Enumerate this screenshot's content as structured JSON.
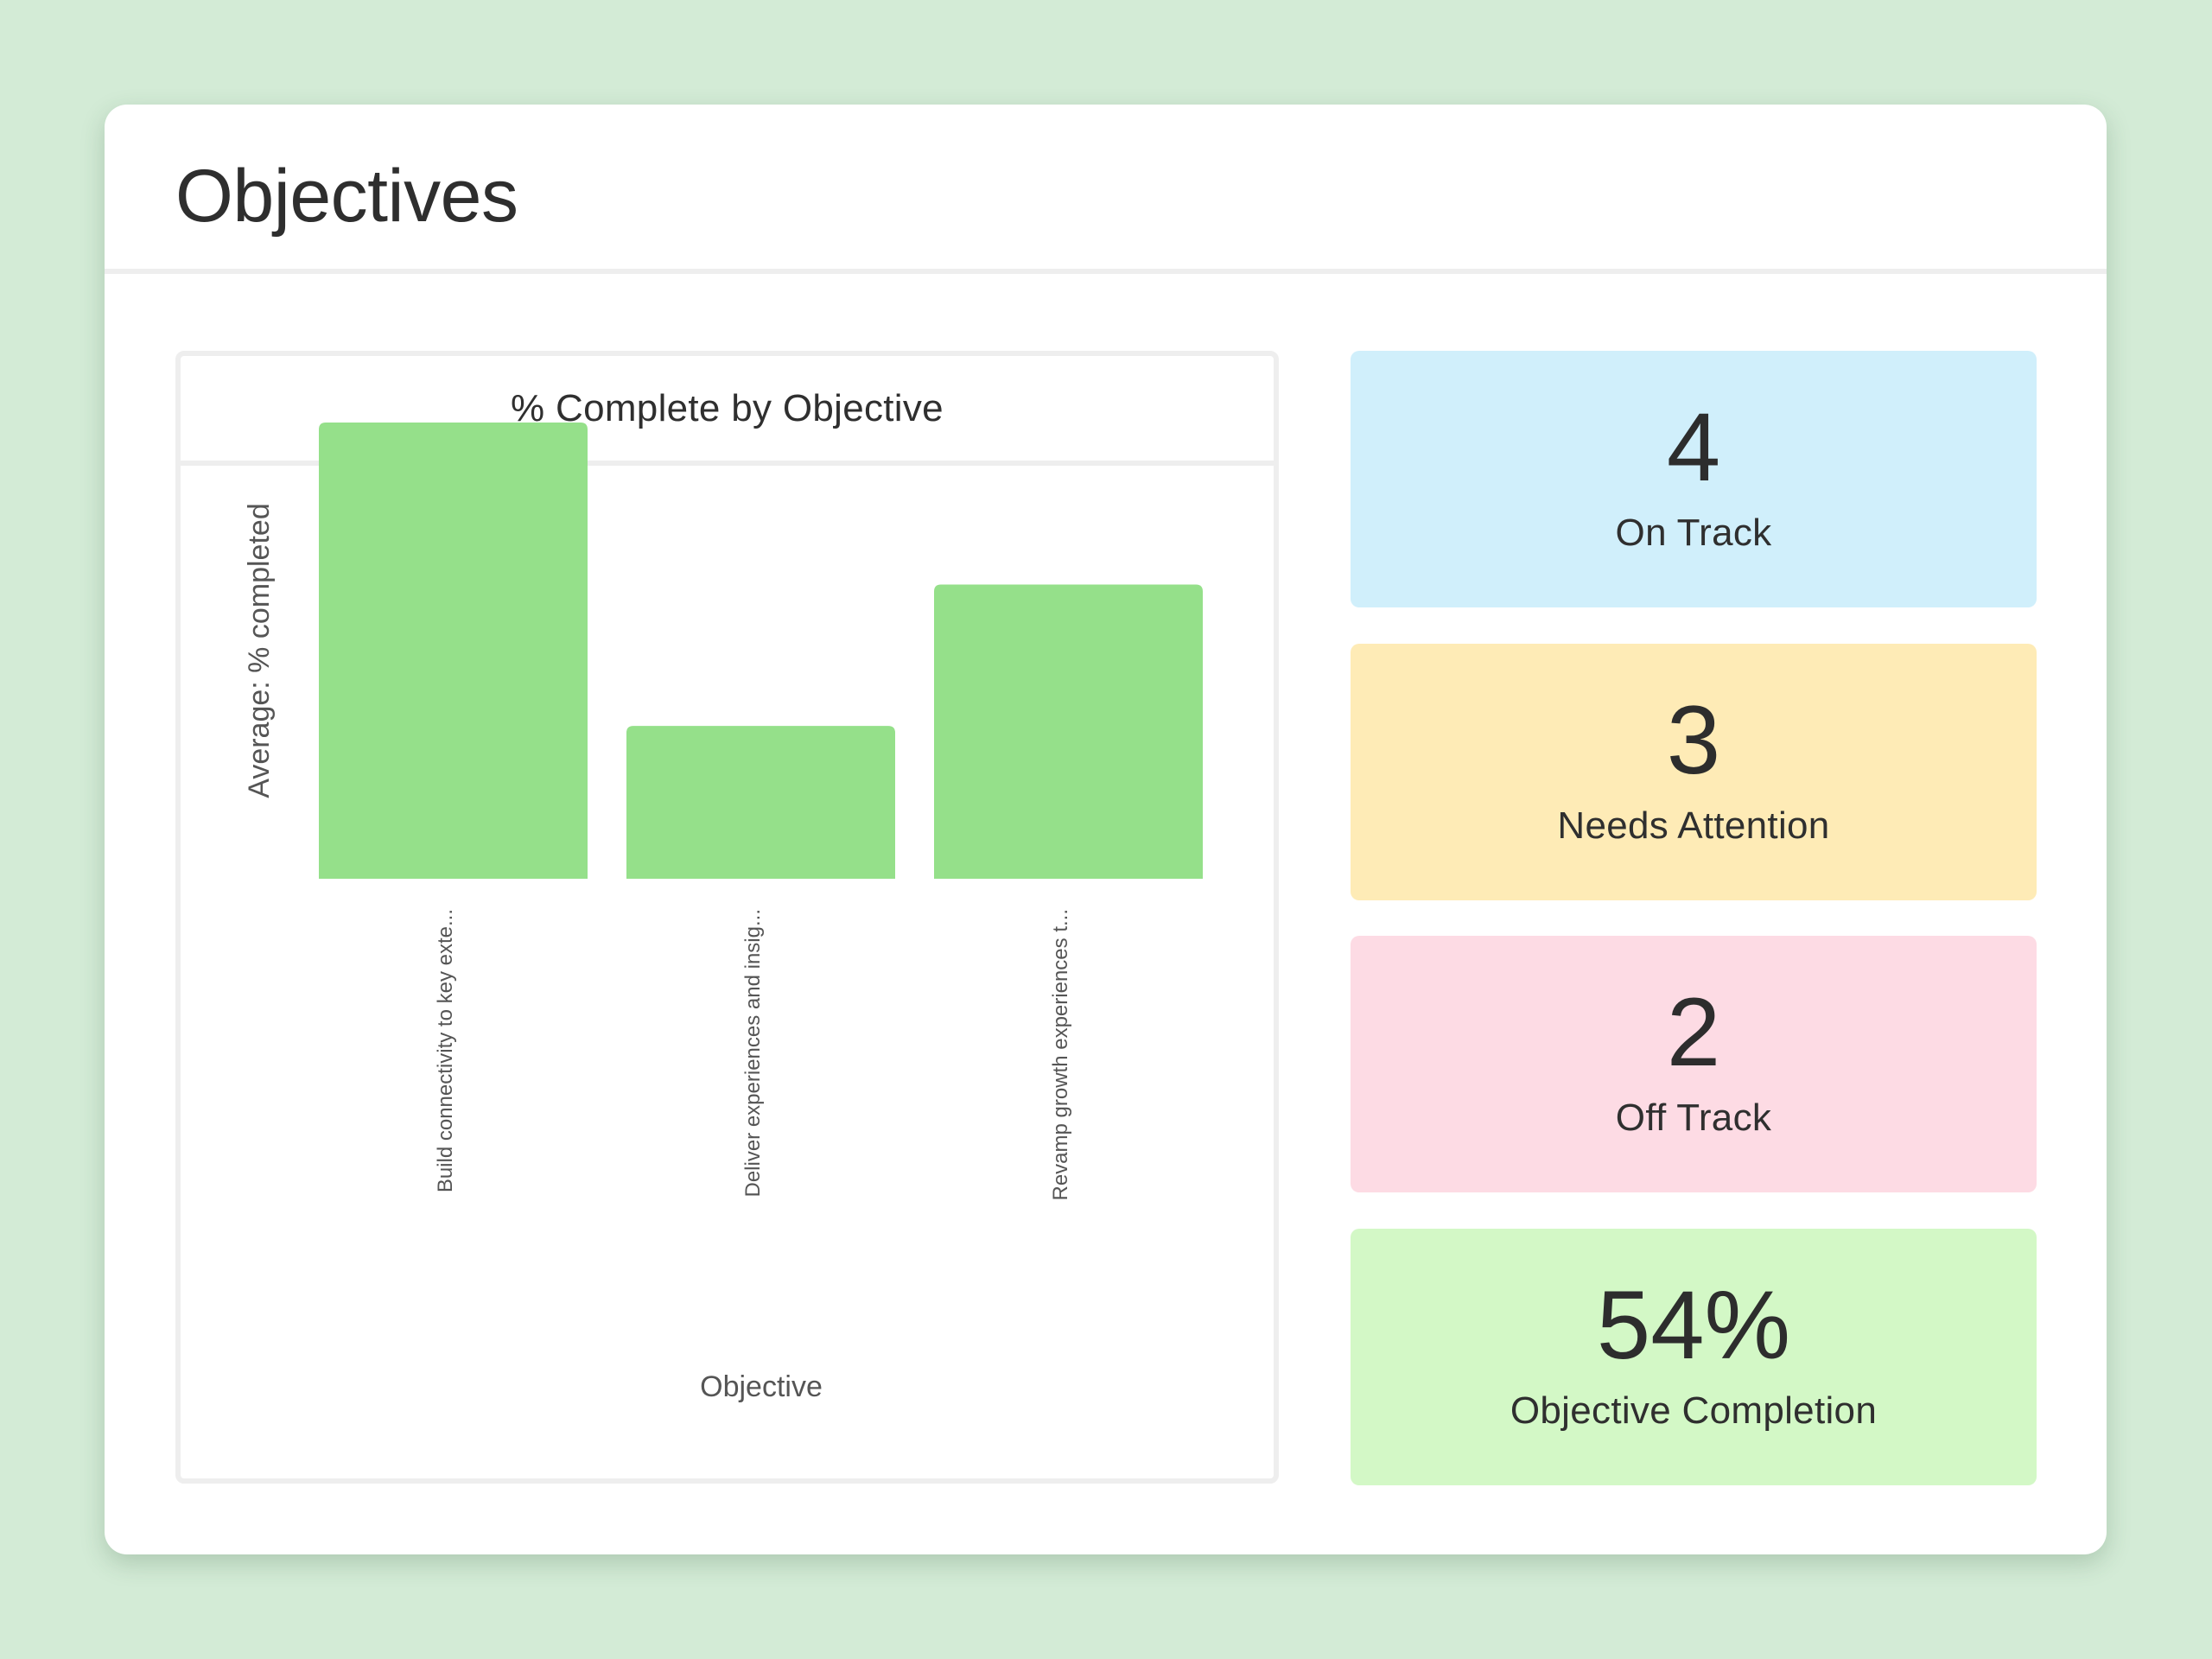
{
  "page": {
    "title": "Objectives"
  },
  "chart_panel": {
    "title": "% Complete by Objective"
  },
  "chart_data": {
    "type": "bar",
    "categories": [
      "Build connectivity to key exte...",
      "Deliver experiences and insig...",
      "Revamp growth experiences t..."
    ],
    "values": [
      100,
      33.5,
      64.5
    ],
    "ylim": [
      0,
      100
    ],
    "xlabel": "Objective",
    "ylabel": "Average: % completed",
    "bar_color": "#95e08a",
    "grid": false
  },
  "stats": [
    {
      "value": "4",
      "label": "On Track",
      "color": "#d0effb"
    },
    {
      "value": "3",
      "label": "Needs Attention",
      "color": "#feebb6"
    },
    {
      "value": "2",
      "label": "Off Track",
      "color": "#fddbe4"
    },
    {
      "value": "54%",
      "label": "Objective Completion",
      "color": "#d3f8c6"
    }
  ]
}
